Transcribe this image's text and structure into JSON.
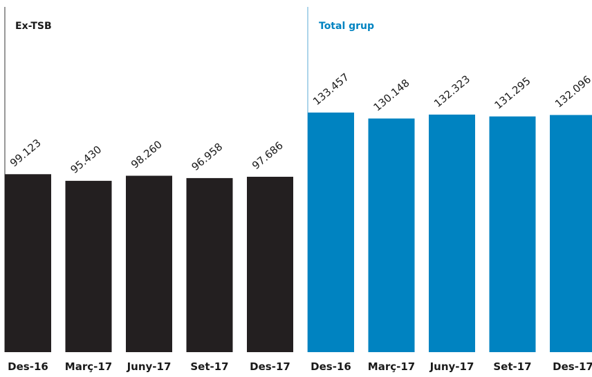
{
  "chart_data": [
    {
      "type": "bar",
      "title": "Ex-TSB",
      "categories": [
        "Des-16",
        "Març-17",
        "Juny-17",
        "Set-17",
        "Des-17"
      ],
      "values": [
        99123,
        95430,
        98260,
        96958,
        97686
      ],
      "value_labels": [
        "99.123",
        "95.430",
        "98.260",
        "96.958",
        "97.686"
      ],
      "color": "#231f20",
      "title_color": "#1a1a1a",
      "ylim": [
        0,
        140000
      ],
      "grid": false
    },
    {
      "type": "bar",
      "title": "Total grup",
      "categories": [
        "Des-16",
        "Març-17",
        "Juny-17",
        "Set-17",
        "Des-17"
      ],
      "values": [
        133457,
        130148,
        132323,
        131295,
        132096
      ],
      "value_labels": [
        "133.457",
        "130.148",
        "132.323",
        "131.295",
        "132.096"
      ],
      "color": "#0083c1",
      "title_color": "#0083c1",
      "ylim": [
        0,
        140000
      ],
      "grid": false
    }
  ]
}
